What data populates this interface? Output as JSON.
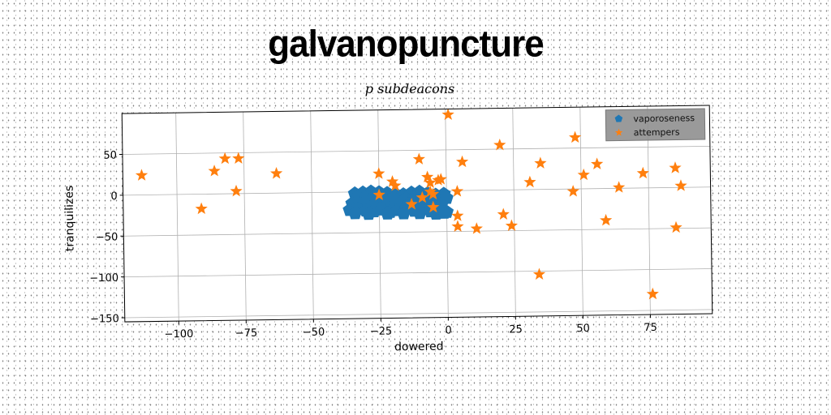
{
  "title": "galvanopuncture",
  "subtitle": "p subdeacons",
  "chart_data": {
    "type": "scatter",
    "xlabel": "dowered",
    "ylabel": "tranquilizes",
    "xlim": [
      -120,
      98
    ],
    "ylim": [
      -155,
      100
    ],
    "xticks": [
      -100,
      -75,
      -50,
      -25,
      0,
      25,
      50,
      75
    ],
    "yticks": [
      -150,
      -100,
      -50,
      0,
      50
    ],
    "xtick_labels": [
      "−100",
      "−75",
      "−50",
      "−25",
      "0",
      "25",
      "50",
      "75"
    ],
    "ytick_labels": [
      "−150",
      "−100",
      "−50",
      "0",
      "50"
    ],
    "grid": true,
    "legend_position": "top-right",
    "series": [
      {
        "name": "vaporoseness",
        "marker": "pentagon",
        "color": "#1f77b4",
        "points": [
          [
            -34,
            -2
          ],
          [
            -31,
            -1
          ],
          [
            -28,
            0
          ],
          [
            -25,
            -1
          ],
          [
            -22,
            -2
          ],
          [
            -19,
            -3
          ],
          [
            -16,
            -4
          ],
          [
            -13,
            -2
          ],
          [
            -10,
            -1
          ],
          [
            -7,
            -3
          ],
          [
            -4,
            -5
          ],
          [
            -1,
            -4
          ],
          [
            -33,
            -6
          ],
          [
            -30,
            -8
          ],
          [
            -27,
            -7
          ],
          [
            -24,
            -9
          ],
          [
            -21,
            -10
          ],
          [
            -18,
            -11
          ],
          [
            -15,
            -9
          ],
          [
            -12,
            -8
          ],
          [
            -9,
            -10
          ],
          [
            -6,
            -12
          ],
          [
            -3,
            -11
          ],
          [
            0,
            -9
          ],
          [
            -35,
            -14
          ],
          [
            -32,
            -15
          ],
          [
            -29,
            -16
          ],
          [
            -26,
            -14
          ],
          [
            -23,
            -17
          ],
          [
            -20,
            -18
          ],
          [
            -17,
            -15
          ],
          [
            -14,
            -16
          ],
          [
            -11,
            -19
          ],
          [
            -8,
            -17
          ],
          [
            -5,
            -20
          ],
          [
            -2,
            -18
          ],
          [
            -36,
            -22
          ],
          [
            -33,
            -21
          ],
          [
            -30,
            -23
          ],
          [
            -27,
            -24
          ],
          [
            -24,
            -22
          ],
          [
            -21,
            -25
          ],
          [
            -18,
            -23
          ],
          [
            -15,
            -21
          ],
          [
            -12,
            -24
          ],
          [
            -9,
            -22
          ],
          [
            -6,
            -25
          ],
          [
            -3,
            -23
          ],
          [
            0,
            -26
          ],
          [
            -34,
            -26
          ],
          [
            -29,
            -27
          ],
          [
            -22,
            -27
          ],
          [
            -16,
            -27
          ],
          [
            -10,
            -27
          ],
          [
            -4,
            -28
          ],
          [
            -1,
            -27
          ]
        ]
      },
      {
        "name": "attempers",
        "marker": "star",
        "color": "#ff7f0e",
        "points": [
          [
            -113,
            24
          ],
          [
            -91,
            -18
          ],
          [
            -86,
            28
          ],
          [
            -82,
            43
          ],
          [
            -77,
            43
          ],
          [
            -78,
            3
          ],
          [
            -63,
            24
          ],
          [
            -25,
            22
          ],
          [
            -25,
            -4
          ],
          [
            -20,
            12
          ],
          [
            -19,
            7
          ],
          [
            -13,
            -16
          ],
          [
            -10,
            39
          ],
          [
            -9,
            -8
          ],
          [
            -7,
            17
          ],
          [
            -6,
            -1
          ],
          [
            -6,
            10
          ],
          [
            -5,
            -20
          ],
          [
            -5,
            -4
          ],
          [
            -3,
            13
          ],
          [
            -2,
            14
          ],
          [
            1,
            93
          ],
          [
            4,
            -1
          ],
          [
            4,
            -31
          ],
          [
            4,
            -44
          ],
          [
            6,
            35
          ],
          [
            11,
            -47
          ],
          [
            20,
            55
          ],
          [
            21,
            -30
          ],
          [
            24,
            -44
          ],
          [
            31,
            9
          ],
          [
            35,
            32
          ],
          [
            34,
            -104
          ],
          [
            47,
            -3
          ],
          [
            48,
            63
          ],
          [
            51,
            17
          ],
          [
            56,
            30
          ],
          [
            59,
            -39
          ],
          [
            64,
            1
          ],
          [
            73,
            18
          ],
          [
            76,
            -130
          ],
          [
            85,
            24
          ],
          [
            85,
            -49
          ],
          [
            87,
            2
          ]
        ]
      }
    ]
  }
}
